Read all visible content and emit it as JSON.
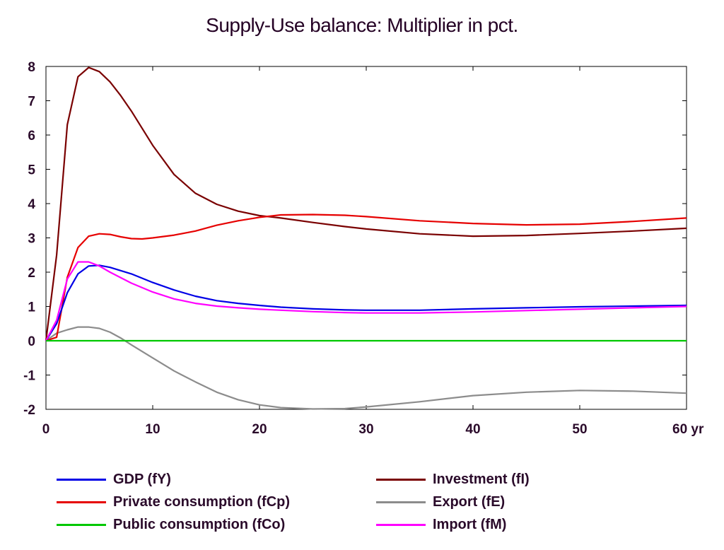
{
  "chart_data": {
    "type": "line",
    "title": "Supply-Use balance: Multiplier in pct.",
    "xlabel": "",
    "ylabel": "",
    "xlim": [
      0,
      60
    ],
    "ylim": [
      -2,
      8
    ],
    "xticks": [
      "0",
      "10",
      "20",
      "30",
      "40",
      "50",
      "60 yr"
    ],
    "yticks": [
      "-2",
      "-1",
      "0",
      "1",
      "2",
      "3",
      "4",
      "5",
      "6",
      "7",
      "8"
    ],
    "legend_position": "bottom",
    "series": [
      {
        "name": "GDP (fY)",
        "color": "#0000e6",
        "x": [
          0,
          1,
          2,
          3,
          4,
          5,
          6,
          8,
          10,
          12,
          14,
          16,
          18,
          20,
          22,
          25,
          28,
          30,
          35,
          40,
          45,
          50,
          55,
          60
        ],
        "y": [
          0,
          0.5,
          1.4,
          1.95,
          2.18,
          2.2,
          2.14,
          1.95,
          1.7,
          1.48,
          1.3,
          1.17,
          1.09,
          1.03,
          0.98,
          0.93,
          0.9,
          0.89,
          0.89,
          0.93,
          0.96,
          0.99,
          1.01,
          1.03
        ]
      },
      {
        "name": "Private consumption (fCp)",
        "color": "#e60000",
        "x": [
          0,
          1,
          2,
          3,
          4,
          5,
          6,
          7,
          8,
          9,
          10,
          12,
          14,
          16,
          18,
          20,
          22,
          25,
          28,
          30,
          35,
          40,
          45,
          50,
          55,
          60
        ],
        "y": [
          0,
          0.1,
          1.85,
          2.72,
          3.05,
          3.12,
          3.1,
          3.03,
          2.98,
          2.97,
          3.0,
          3.08,
          3.2,
          3.37,
          3.5,
          3.6,
          3.67,
          3.68,
          3.66,
          3.62,
          3.5,
          3.42,
          3.38,
          3.4,
          3.48,
          3.58
        ]
      },
      {
        "name": "Public consumption (fCo)",
        "color": "#00c800",
        "x": [
          0,
          60
        ],
        "y": [
          0,
          0
        ]
      },
      {
        "name": "Investment (fI)",
        "color": "#7a0000",
        "x": [
          0,
          1,
          2,
          3,
          4,
          5,
          6,
          7,
          8,
          9,
          10,
          12,
          14,
          16,
          18,
          20,
          22,
          25,
          28,
          30,
          35,
          40,
          45,
          50,
          55,
          60
        ],
        "y": [
          0,
          2.5,
          6.3,
          7.7,
          7.97,
          7.85,
          7.55,
          7.15,
          6.7,
          6.2,
          5.7,
          4.85,
          4.3,
          3.98,
          3.78,
          3.65,
          3.58,
          3.45,
          3.33,
          3.26,
          3.12,
          3.05,
          3.07,
          3.13,
          3.2,
          3.28
        ]
      },
      {
        "name": "Export (fE)",
        "color": "#8c8c8c",
        "x": [
          0,
          1,
          2,
          3,
          4,
          5,
          6,
          7,
          8,
          10,
          12,
          14,
          16,
          18,
          20,
          22,
          25,
          28,
          30,
          35,
          40,
          45,
          50,
          55,
          60
        ],
        "y": [
          0,
          0.22,
          0.32,
          0.4,
          0.4,
          0.36,
          0.25,
          0.08,
          -0.12,
          -0.5,
          -0.88,
          -1.2,
          -1.5,
          -1.72,
          -1.87,
          -1.95,
          -1.99,
          -1.98,
          -1.93,
          -1.78,
          -1.6,
          -1.5,
          -1.45,
          -1.47,
          -1.53
        ]
      },
      {
        "name": "Import (fM)",
        "color": "#ff00ff",
        "x": [
          0,
          1,
          2,
          3,
          4,
          5,
          6,
          8,
          10,
          12,
          14,
          16,
          18,
          20,
          22,
          25,
          28,
          30,
          35,
          40,
          45,
          50,
          55,
          60
        ],
        "y": [
          0,
          0.6,
          1.8,
          2.3,
          2.3,
          2.18,
          2.0,
          1.68,
          1.42,
          1.22,
          1.09,
          1.01,
          0.96,
          0.92,
          0.89,
          0.85,
          0.82,
          0.81,
          0.81,
          0.84,
          0.88,
          0.92,
          0.96,
          1.0
        ]
      }
    ]
  }
}
